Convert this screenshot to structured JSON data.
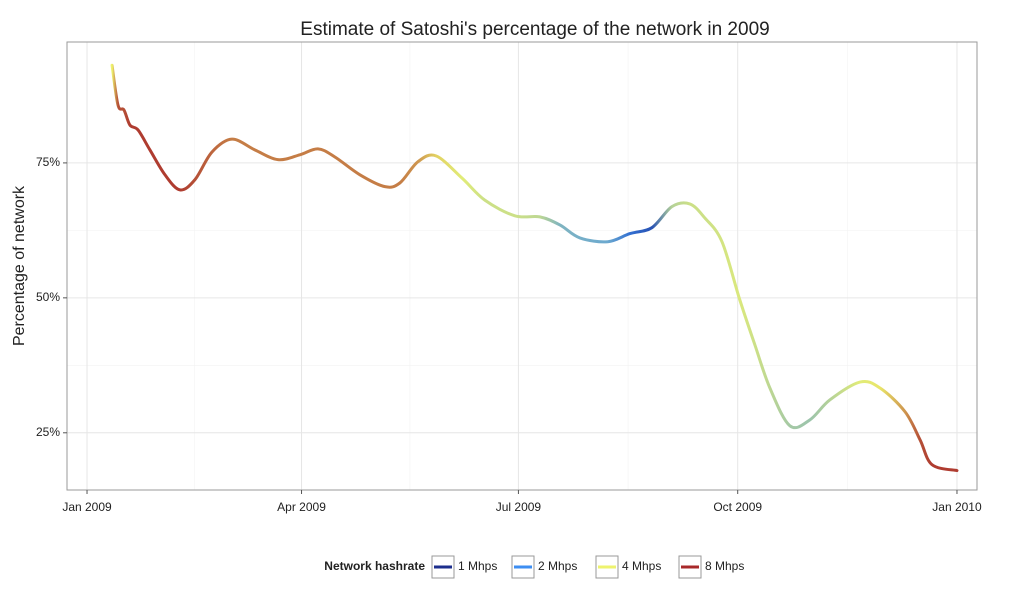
{
  "chart_data": {
    "type": "line",
    "title": "Estimate of Satoshi's percentage of the network in 2009",
    "y_label": "Percentage of network",
    "x": [
      10.5,
      13,
      15.5,
      18,
      21.4,
      26.4,
      32.7,
      39,
      45.3,
      52.4,
      60.8,
      70.5,
      80.1,
      89.3,
      96.9,
      104,
      114.5,
      125,
      131.3,
      138.8,
      146.4,
      157.3,
      166.9,
      179.5,
      190,
      198.4,
      206.8,
      218.5,
      227.8,
      237,
      245.4,
      252.9,
      259.2,
      266.4,
      273.9,
      280.2,
      286.5,
      294.9,
      303.3,
      311.7,
      324.3,
      332.7,
      343.2,
      349.5,
      354.5,
      365
    ],
    "values": [
      93.1,
      85.7,
      84.8,
      82,
      81.1,
      77.4,
      72.8,
      70,
      71.9,
      77,
      79.4,
      77.4,
      75.6,
      76.5,
      77.6,
      76.1,
      72.8,
      70.6,
      71.3,
      75.2,
      76.3,
      72.2,
      68.1,
      65.2,
      65,
      63.5,
      61.1,
      60.4,
      61.9,
      63,
      66.9,
      67.4,
      64.8,
      60.4,
      49.6,
      41.3,
      33.3,
      26.3,
      27.4,
      31.1,
      34.4,
      33.3,
      28.9,
      23.7,
      19.1,
      18
    ],
    "hashrate": [
      4,
      7,
      7,
      7.5,
      7.5,
      7.5,
      7.5,
      7.5,
      7,
      6.5,
      6,
      6,
      6,
      6,
      6,
      6,
      6,
      6,
      6,
      5.5,
      4.5,
      3.8,
      3.5,
      3.5,
      3.3,
      2.6,
      2.5,
      2.4,
      1.6,
      1.3,
      3.2,
      3.5,
      3.5,
      3.6,
      3.7,
      3.5,
      3.3,
      3.0,
      2.9,
      3.2,
      3.8,
      4.2,
      5.5,
      7,
      7.5,
      7.5
    ],
    "xlim": [
      -8.4,
      373.4
    ],
    "xticks": [
      {
        "value": 0,
        "label": "Jan 2009"
      },
      {
        "value": 90,
        "label": "Apr 2009"
      },
      {
        "value": 181,
        "label": "Jul 2009"
      },
      {
        "value": 273,
        "label": "Oct 2009"
      },
      {
        "value": 365,
        "label": "Jan 2010"
      }
    ],
    "ylim": [
      14.4,
      97.4
    ],
    "yticks": [
      {
        "value": 25,
        "label": "25%"
      },
      {
        "value": 50,
        "label": "50%"
      },
      {
        "value": 75,
        "label": "75%"
      }
    ],
    "grid": true,
    "legend": {
      "position": "bottom",
      "title": "Network hashrate",
      "items": [
        {
          "value": 1,
          "label": "1 Mhps",
          "color": "#1c2e8c"
        },
        {
          "value": 2,
          "label": "2 Mhps",
          "color": "#3d8ef2"
        },
        {
          "value": 4,
          "label": "4 Mhps",
          "color": "#eef36e"
        },
        {
          "value": 8,
          "label": "8 Mhps",
          "color": "#a8292a"
        }
      ]
    }
  }
}
